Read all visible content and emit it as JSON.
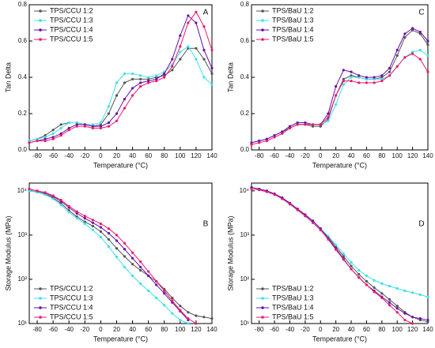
{
  "chart_data": [
    {
      "type": "line",
      "title": "A",
      "xlabel": "Temperature (°C)",
      "ylabel": "Tan Delta",
      "legend": "upper left",
      "log_scale": false,
      "x": [
        -90,
        -80,
        -70,
        -60,
        -50,
        -40,
        -30,
        -20,
        -10,
        0,
        10,
        20,
        30,
        40,
        50,
        60,
        70,
        80,
        90,
        100,
        110,
        120,
        130,
        140
      ],
      "xlim": [
        -90,
        140
      ],
      "xticks": [
        -80,
        -60,
        -40,
        -20,
        0,
        20,
        40,
        60,
        80,
        100,
        120,
        140
      ],
      "ylim": [
        0,
        0.8
      ],
      "yticks": [
        {
          "value": 0,
          "label": "0.0"
        },
        0.2,
        0.4,
        0.6,
        0.8
      ],
      "series": [
        {
          "name": "TPS/CCU 1:2",
          "color": "#555555",
          "values": [
            0.05,
            0.06,
            0.08,
            0.11,
            0.14,
            0.15,
            0.15,
            0.14,
            0.13,
            0.14,
            0.2,
            0.3,
            0.37,
            0.39,
            0.39,
            0.39,
            0.4,
            0.41,
            0.44,
            0.5,
            0.56,
            0.56,
            0.5,
            0.42
          ]
        },
        {
          "name": "TPS/CCU 1:3",
          "color": "#3ee0ea",
          "values": [
            0.05,
            0.06,
            0.07,
            0.09,
            0.12,
            0.15,
            0.15,
            0.14,
            0.14,
            0.15,
            0.24,
            0.37,
            0.42,
            0.42,
            0.41,
            0.4,
            0.41,
            0.43,
            0.47,
            0.54,
            0.57,
            0.5,
            0.4,
            0.36
          ]
        },
        {
          "name": "TPS/CCU 1:4",
          "color": "#6a0dad",
          "values": [
            0.04,
            0.05,
            0.06,
            0.07,
            0.09,
            0.12,
            0.14,
            0.14,
            0.13,
            0.13,
            0.15,
            0.2,
            0.28,
            0.34,
            0.37,
            0.38,
            0.39,
            0.42,
            0.5,
            0.63,
            0.74,
            0.7,
            0.55,
            0.45
          ]
        },
        {
          "name": "TPS/CCU 1:5",
          "color": "#ec1a6c",
          "values": [
            0.04,
            0.05,
            0.05,
            0.06,
            0.08,
            0.11,
            0.13,
            0.13,
            0.12,
            0.12,
            0.13,
            0.16,
            0.23,
            0.3,
            0.35,
            0.37,
            0.38,
            0.4,
            0.46,
            0.57,
            0.7,
            0.76,
            0.68,
            0.55
          ]
        }
      ]
    },
    {
      "type": "line",
      "title": "C",
      "xlabel": "Temperature (°C)",
      "ylabel": "Tan Delta",
      "legend": "upper left",
      "log_scale": false,
      "x": [
        -90,
        -80,
        -70,
        -60,
        -50,
        -40,
        -30,
        -20,
        -10,
        0,
        10,
        20,
        30,
        40,
        50,
        60,
        70,
        80,
        90,
        100,
        110,
        120,
        130,
        140
      ],
      "xlim": [
        -90,
        140
      ],
      "xticks": [
        -80,
        -60,
        -40,
        -20,
        0,
        20,
        40,
        60,
        80,
        100,
        120,
        140
      ],
      "ylim": [
        0,
        0.8
      ],
      "yticks": [
        {
          "value": 0,
          "label": "0.0"
        },
        0.2,
        0.4,
        0.6,
        0.8
      ],
      "series": [
        {
          "name": "TPS/BaU 1:2",
          "color": "#555555",
          "values": [
            0.04,
            0.05,
            0.06,
            0.08,
            0.1,
            0.12,
            0.14,
            0.14,
            0.13,
            0.13,
            0.17,
            0.3,
            0.39,
            0.41,
            0.4,
            0.39,
            0.39,
            0.4,
            0.43,
            0.52,
            0.62,
            0.66,
            0.64,
            0.58
          ]
        },
        {
          "name": "TPS/BaU 1:3",
          "color": "#3ee0ea",
          "values": [
            0.04,
            0.05,
            0.06,
            0.08,
            0.1,
            0.13,
            0.15,
            0.15,
            0.14,
            0.14,
            0.16,
            0.25,
            0.36,
            0.4,
            0.4,
            0.39,
            0.39,
            0.39,
            0.41,
            0.46,
            0.51,
            0.54,
            0.55,
            0.52
          ]
        },
        {
          "name": "TPS/BaU 1:4",
          "color": "#6a0dad",
          "values": [
            0.04,
            0.05,
            0.06,
            0.08,
            0.1,
            0.13,
            0.15,
            0.15,
            0.14,
            0.14,
            0.2,
            0.35,
            0.44,
            0.43,
            0.41,
            0.4,
            0.4,
            0.41,
            0.45,
            0.55,
            0.64,
            0.67,
            0.65,
            0.6
          ]
        },
        {
          "name": "TPS/BaU 1:5",
          "color": "#ec1a6c",
          "values": [
            0.03,
            0.04,
            0.05,
            0.07,
            0.09,
            0.12,
            0.14,
            0.14,
            0.14,
            0.14,
            0.18,
            0.3,
            0.38,
            0.38,
            0.37,
            0.37,
            0.37,
            0.38,
            0.41,
            0.46,
            0.51,
            0.53,
            0.5,
            0.43
          ]
        }
      ]
    },
    {
      "type": "line",
      "title": "B",
      "xlabel": "Temperature (°C)",
      "ylabel": "Storage Modulus (MPa)",
      "legend": "lower left",
      "log_scale": true,
      "x": [
        -90,
        -80,
        -70,
        -60,
        -50,
        -40,
        -30,
        -20,
        -10,
        0,
        10,
        20,
        30,
        40,
        50,
        60,
        70,
        80,
        90,
        100,
        110,
        120,
        130,
        140
      ],
      "xlim": [
        -90,
        140
      ],
      "xticks": [
        -80,
        -60,
        -40,
        -20,
        0,
        20,
        40,
        60,
        80,
        100,
        120,
        140
      ],
      "ylim": [
        10,
        15000
      ],
      "yticks": [
        {
          "value": 10,
          "label": "10¹"
        },
        {
          "value": 100,
          "label": "10²"
        },
        {
          "value": 1000,
          "label": "10³"
        },
        {
          "value": 10000,
          "label": "10⁴"
        }
      ],
      "series": [
        {
          "name": "TPS/CCU 1:2",
          "color": "#555555",
          "values": [
            10000,
            9500,
            8500,
            7000,
            5200,
            3600,
            2600,
            2000,
            1600,
            1200,
            800,
            500,
            330,
            220,
            160,
            120,
            90,
            60,
            38,
            25,
            18,
            15,
            14,
            13
          ]
        },
        {
          "name": "TPS/CCU 1:3",
          "color": "#3ee0ea",
          "values": [
            10000,
            9300,
            8200,
            6600,
            4800,
            3300,
            2400,
            1800,
            1300,
            900,
            550,
            320,
            190,
            120,
            80,
            55,
            38,
            26,
            17,
            12,
            10,
            null,
            null,
            null
          ]
        },
        {
          "name": "TPS/CCU 1:4",
          "color": "#6a0dad",
          "values": [
            11000,
            10000,
            9000,
            7500,
            5800,
            4200,
            3100,
            2400,
            1900,
            1500,
            1100,
            750,
            480,
            300,
            190,
            120,
            75,
            48,
            30,
            19,
            12,
            null,
            null,
            null
          ]
        },
        {
          "name": "TPS/CCU 1:5",
          "color": "#ec1a6c",
          "values": [
            11000,
            10000,
            9200,
            7800,
            6200,
            4500,
            3400,
            2700,
            2200,
            1800,
            1400,
            1000,
            650,
            400,
            250,
            150,
            90,
            55,
            33,
            20,
            13,
            10,
            null,
            null
          ]
        }
      ]
    },
    {
      "type": "line",
      "title": "D",
      "xlabel": "Temperature (°C)",
      "ylabel": "Storage Modulus (MPa)",
      "legend": "lower left",
      "log_scale": true,
      "x": [
        -90,
        -80,
        -70,
        -60,
        -50,
        -40,
        -30,
        -20,
        -10,
        0,
        10,
        20,
        30,
        40,
        50,
        60,
        70,
        80,
        90,
        100,
        110,
        120,
        130,
        140
      ],
      "xlim": [
        -90,
        140
      ],
      "xticks": [
        -80,
        -60,
        -40,
        -20,
        0,
        20,
        40,
        60,
        80,
        100,
        120,
        140
      ],
      "ylim": [
        10,
        15000
      ],
      "yticks": [
        {
          "value": 10,
          "label": "10¹"
        },
        {
          "value": 100,
          "label": "10²"
        },
        {
          "value": 1000,
          "label": "10³"
        },
        {
          "value": 10000,
          "label": "10⁴"
        }
      ],
      "series": [
        {
          "name": "TPS/BaU 1:2",
          "color": "#555555",
          "values": [
            12000,
            11000,
            10000,
            8500,
            7000,
            5200,
            3800,
            2800,
            2000,
            1400,
            900,
            550,
            330,
            200,
            130,
            90,
            65,
            48,
            35,
            25,
            18,
            14,
            12,
            11
          ]
        },
        {
          "name": "TPS/BaU 1:3",
          "color": "#3ee0ea",
          "values": [
            12000,
            11000,
            10000,
            8500,
            6800,
            5000,
            3700,
            2700,
            2000,
            1400,
            950,
            600,
            380,
            240,
            160,
            120,
            95,
            80,
            70,
            62,
            55,
            50,
            45,
            40
          ]
        },
        {
          "name": "TPS/BaU 1:4",
          "color": "#6a0dad",
          "values": [
            12000,
            11000,
            10000,
            8600,
            7000,
            5300,
            3900,
            2900,
            2100,
            1400,
            850,
            500,
            290,
            170,
            110,
            75,
            55,
            40,
            30,
            22,
            17,
            14,
            13,
            12
          ]
        },
        {
          "name": "TPS/BaU 1:5",
          "color": "#ec1a6c",
          "values": [
            11000,
            10500,
            9500,
            8200,
            6600,
            5000,
            3700,
            2700,
            1900,
            1300,
            800,
            470,
            280,
            170,
            110,
            75,
            52,
            38,
            26,
            18,
            12,
            10,
            null,
            null
          ]
        }
      ]
    }
  ]
}
